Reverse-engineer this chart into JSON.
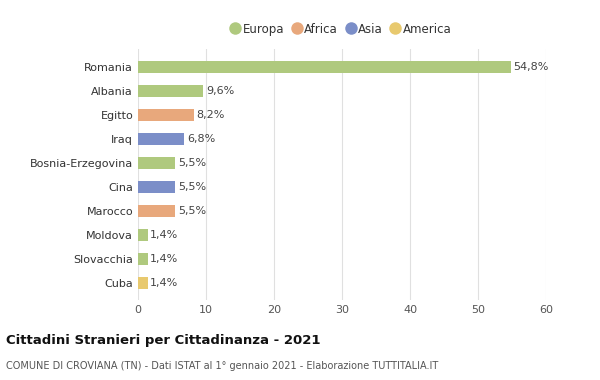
{
  "categories": [
    "Romania",
    "Albania",
    "Egitto",
    "Iraq",
    "Bosnia-Erzegovina",
    "Cina",
    "Marocco",
    "Moldova",
    "Slovacchia",
    "Cuba"
  ],
  "values": [
    54.8,
    9.6,
    8.2,
    6.8,
    5.5,
    5.5,
    5.5,
    1.4,
    1.4,
    1.4
  ],
  "labels": [
    "54,8%",
    "9,6%",
    "8,2%",
    "6,8%",
    "5,5%",
    "5,5%",
    "5,5%",
    "1,4%",
    "1,4%",
    "1,4%"
  ],
  "colors": [
    "#afc97e",
    "#afc97e",
    "#e8a87c",
    "#7b8ec8",
    "#afc97e",
    "#7b8ec8",
    "#e8a87c",
    "#afc97e",
    "#afc97e",
    "#e8c96e"
  ],
  "legend_labels": [
    "Europa",
    "Africa",
    "Asia",
    "America"
  ],
  "legend_colors": [
    "#afc97e",
    "#e8a87c",
    "#7b8ec8",
    "#e8c96e"
  ],
  "xlim": [
    0,
    60
  ],
  "xticks": [
    0,
    10,
    20,
    30,
    40,
    50,
    60
  ],
  "title": "Cittadini Stranieri per Cittadinanza - 2021",
  "subtitle": "COMUNE DI CROVIANA (TN) - Dati ISTAT al 1° gennaio 2021 - Elaborazione TUTTITALIA.IT",
  "background_color": "#ffffff",
  "axes_facecolor": "#f9f9f9",
  "grid_color": "#e0e0e0",
  "bar_height": 0.5
}
